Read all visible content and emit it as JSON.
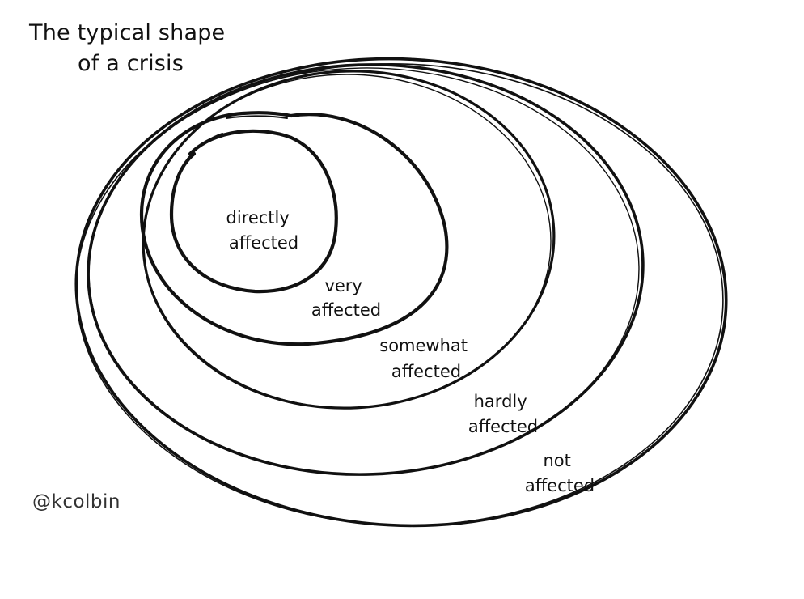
{
  "title": {
    "line1": "The typical shape",
    "line2": "of a crisis"
  },
  "rings": [
    {
      "line1": "directly",
      "line2": "affected"
    },
    {
      "line1": "very",
      "line2": "affected"
    },
    {
      "line1": "somewhat",
      "line2": "affected"
    },
    {
      "line1": "hardly",
      "line2": "affected"
    },
    {
      "line1": "not",
      "line2": "affected"
    }
  ],
  "credit": "@kcolbin",
  "colors": {
    "ink": "#111111",
    "background": "#ffffff"
  }
}
